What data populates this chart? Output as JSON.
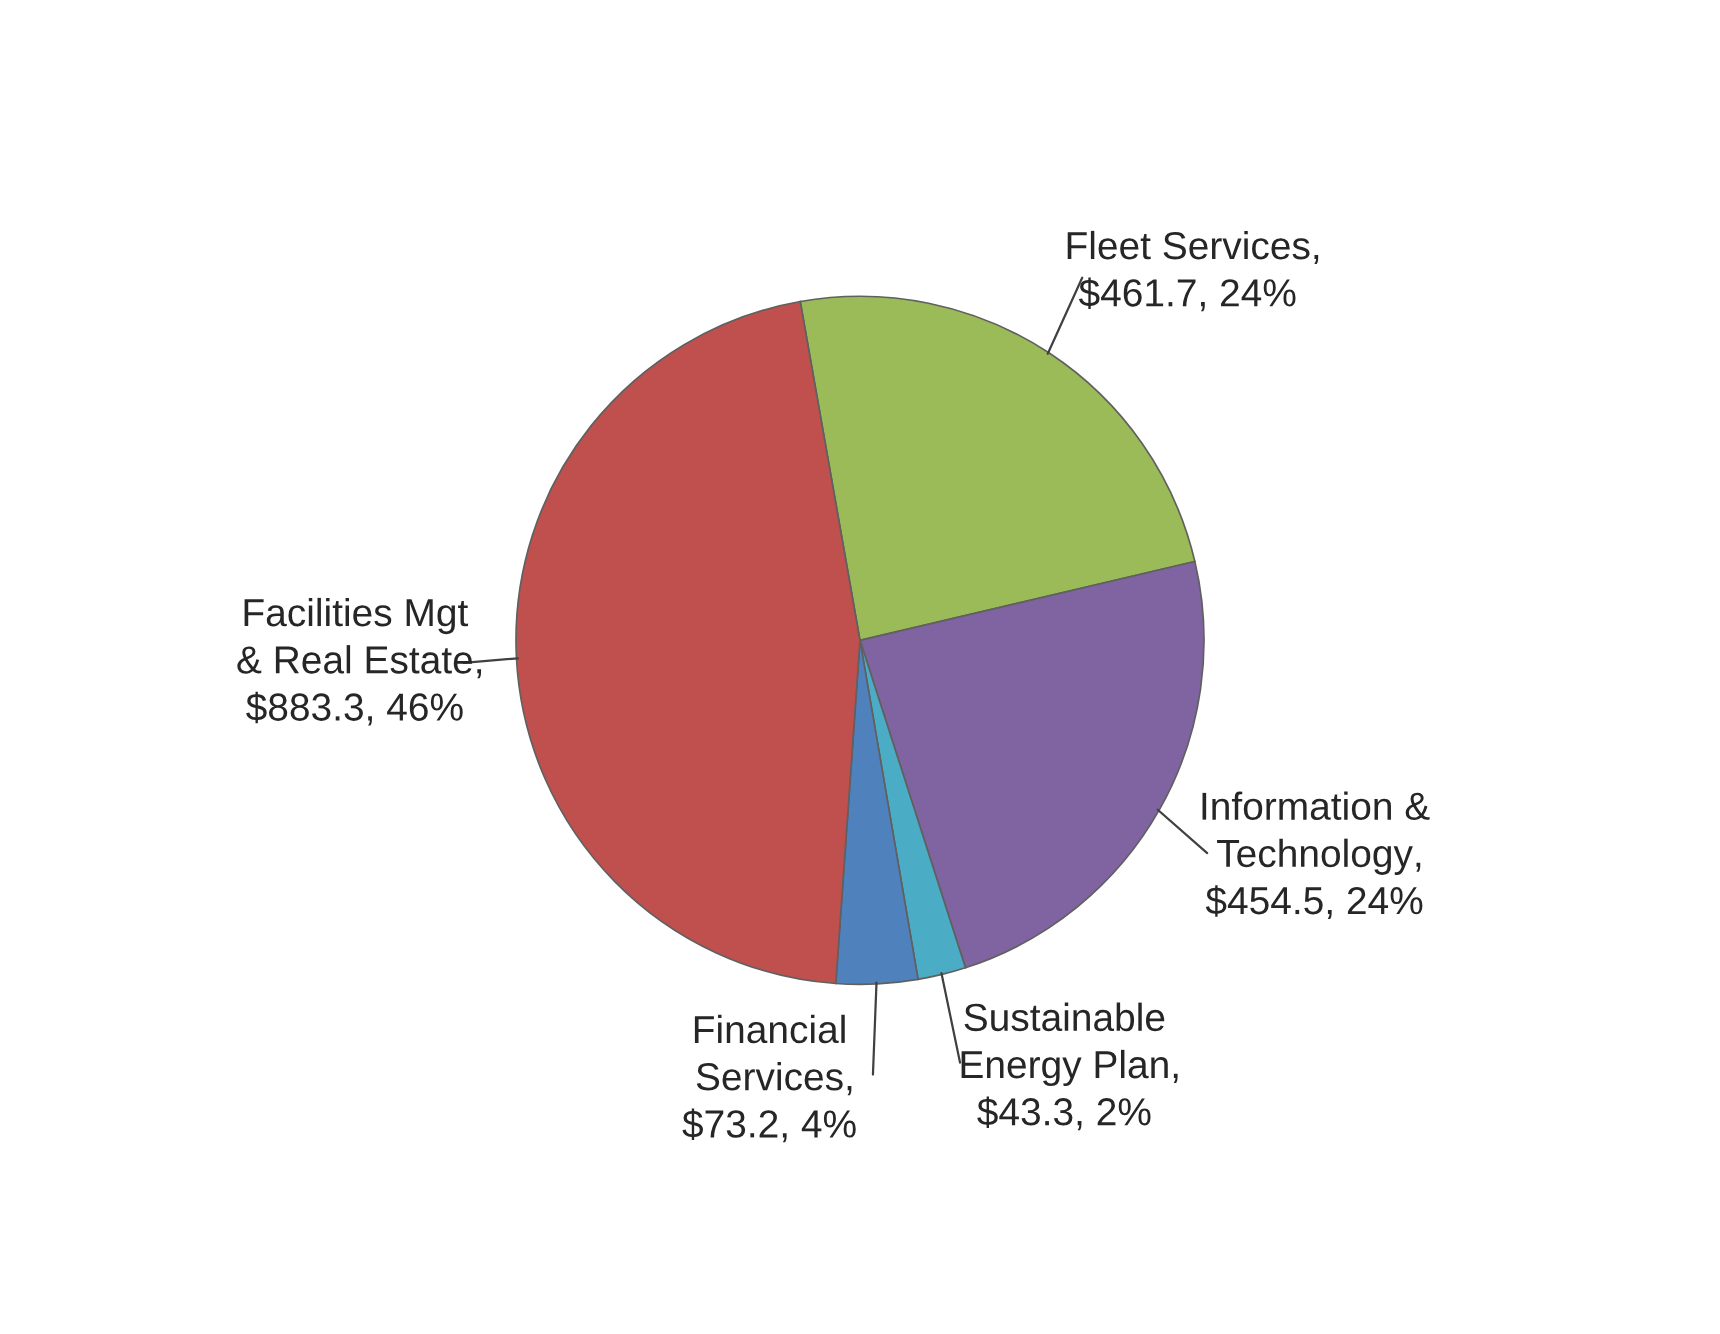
{
  "chart_data": {
    "type": "pie",
    "categories": [
      "Fleet Services",
      "Information & Technology",
      "Sustainable Energy Plan",
      "Financial Services",
      "Facilities Mgt & Real Estate"
    ],
    "values": [
      461.7,
      454.5,
      43.3,
      73.2,
      883.3
    ],
    "value_labels": [
      ", $461.7, 24%",
      ", $454.5, 24%",
      ", $43.3, 2%",
      ", $73.2, 4%",
      ", $883.3, 46%"
    ],
    "colors": [
      "#9bbb59",
      "#8064a2",
      "#4bacc6",
      "#4f81bd",
      "#c0504d"
    ]
  }
}
